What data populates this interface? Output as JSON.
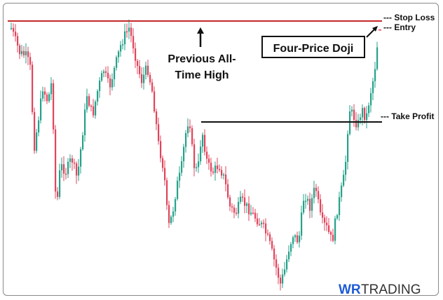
{
  "chart_data": {
    "type": "candlestick",
    "colors": {
      "up": "#26a18a",
      "down": "#e0445c",
      "stop_loss_line": "#c62828",
      "take_profit_line": "#111111",
      "text": "#111111"
    },
    "levels": {
      "stop_loss": {
        "label": "--- Stop Loss"
      },
      "entry": {
        "label": "--- Entry"
      },
      "take_profit": {
        "label": "--- Take Profit"
      }
    },
    "annotations": {
      "previous_high": {
        "line1": "Previous All-",
        "line2": "Time High",
        "icon": "arrow-up-icon"
      },
      "pattern": {
        "label": "Four-Price Doji",
        "icon": "arrow-icon"
      }
    },
    "candles": []
  },
  "brand": {
    "wr": "WR",
    "trading": "TRADING"
  }
}
